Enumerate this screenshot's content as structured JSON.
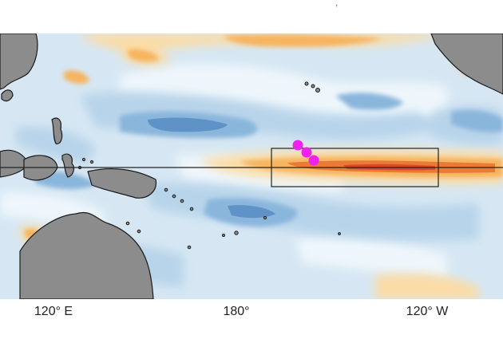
{
  "map": {
    "axis_labels": {
      "west": "120° E",
      "center": "180°",
      "east": "120° W"
    },
    "colors": {
      "ocean_base": "#d6e7f3",
      "cool_light": "#b8d4ea",
      "cool_mid": "#8ab6dc",
      "cool_dark": "#5f93c8",
      "near_zero": "#eef6fb",
      "warm_light": "#fbdca6",
      "warm_mid": "#f6b45e",
      "warm_dark": "#ea7a36",
      "hot": "#d9482a",
      "land": "#8c8c8c",
      "coastline": "#1a1a1a",
      "equator_line": "#222222",
      "nino_box": "#222222",
      "markers": "#ee22ee"
    },
    "markers": {
      "count": 3
    }
  }
}
